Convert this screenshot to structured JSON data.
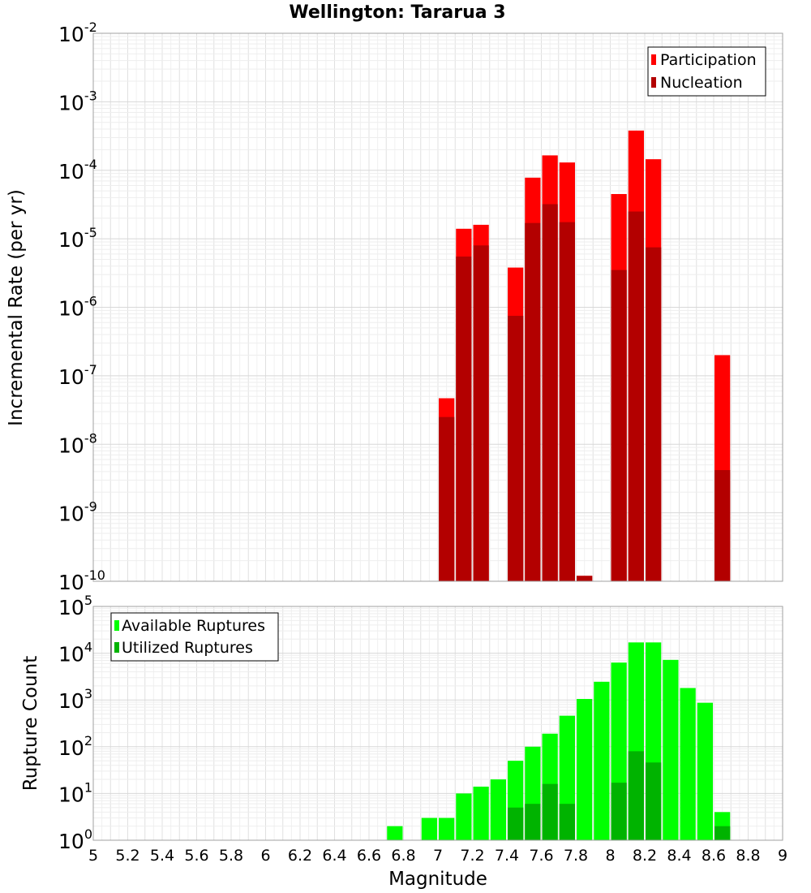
{
  "chart_data": [
    {
      "type": "bar",
      "panel": "top",
      "title": "Wellington: Tararua 3",
      "xlabel": "",
      "ylabel": "Incremental Rate (per yr)",
      "xlim": [
        5,
        9
      ],
      "ylim": [
        1e-10,
        0.01
      ],
      "y_scale": "log",
      "grid": true,
      "legend_position": "top-right",
      "bar_width": 0.1,
      "x": [
        7.05,
        7.15,
        7.25,
        7.45,
        7.55,
        7.65,
        7.75,
        7.85,
        8.05,
        8.15,
        8.25,
        8.65
      ],
      "series": [
        {
          "name": "Participation",
          "color": "#ff0000",
          "values": [
            4.7e-08,
            1.4e-05,
            1.6e-05,
            3.8e-06,
            7.8e-05,
            0.000165,
            0.00013,
            1.2e-10,
            4.5e-05,
            0.00038,
            0.000145,
            2e-07
          ]
        },
        {
          "name": "Nucleation",
          "color": "#b30000",
          "values": [
            2.5e-08,
            5.5e-06,
            8e-06,
            7.5e-07,
            1.7e-05,
            3.2e-05,
            1.75e-05,
            1.2e-10,
            3.5e-06,
            2.5e-05,
            7.5e-06,
            4.2e-09
          ]
        }
      ]
    },
    {
      "type": "bar",
      "panel": "bottom",
      "title": "",
      "xlabel": "Magnitude",
      "ylabel": "Rupture Count",
      "xlim": [
        5,
        9
      ],
      "ylim": [
        1,
        100000
      ],
      "y_scale": "log",
      "grid": true,
      "legend_position": "top-left",
      "bar_width": 0.1,
      "x": [
        6.75,
        6.95,
        7.05,
        7.15,
        7.25,
        7.35,
        7.45,
        7.55,
        7.65,
        7.75,
        7.85,
        7.95,
        8.05,
        8.15,
        8.25,
        8.35,
        8.45,
        8.55,
        8.65
      ],
      "series": [
        {
          "name": "Available Ruptures",
          "color": "#00ff00",
          "values": [
            2,
            3,
            3,
            10,
            14,
            20,
            50,
            100,
            190,
            460,
            1050,
            2450,
            6300,
            17000,
            17000,
            7200,
            1800,
            870,
            4
          ]
        },
        {
          "name": "Utilized Ruptures",
          "color": "#00b300",
          "values": [
            null,
            1,
            1,
            1,
            1,
            null,
            5,
            6,
            16,
            6,
            1,
            1,
            17,
            80,
            46,
            null,
            null,
            null,
            2
          ]
        }
      ]
    }
  ],
  "x_ticks": [
    "5",
    "5.2",
    "5.4",
    "5.6",
    "5.8",
    "6",
    "6.2",
    "6.4",
    "6.6",
    "6.8",
    "7",
    "7.2",
    "7.4",
    "7.6",
    "7.8",
    "8",
    "8.2",
    "8.4",
    "8.6",
    "8.8",
    "9"
  ]
}
